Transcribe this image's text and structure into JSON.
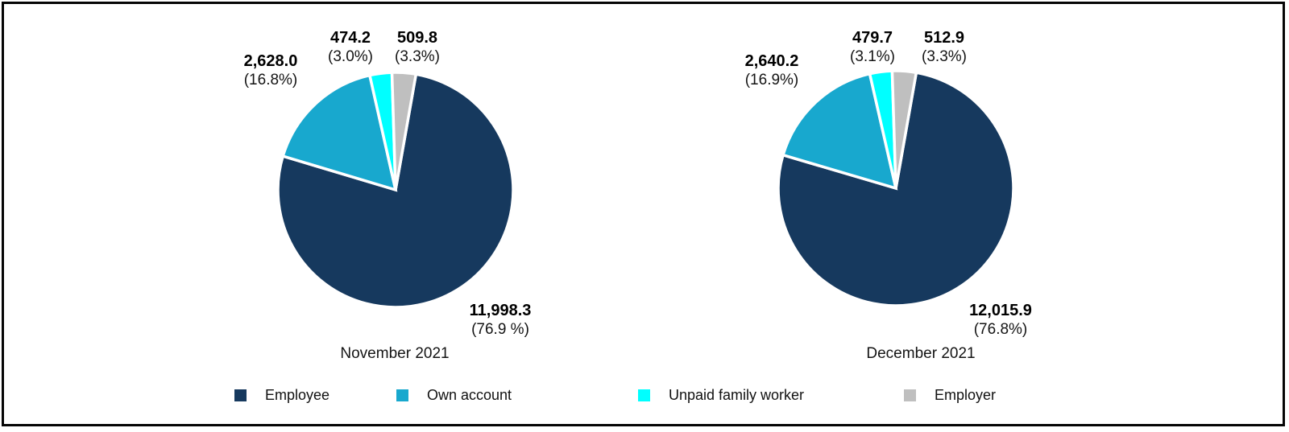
{
  "colors": {
    "employee": "#16395E",
    "own_account": "#18A8CE",
    "unpaid_family_worker": "#00FFFF",
    "employer": "#BFBFBF",
    "frame_border": "#050505",
    "background": "#FFFFFF"
  },
  "chart_data": [
    {
      "type": "pie",
      "title": "November 2021",
      "categories": [
        "Employee",
        "Own account",
        "Unpaid family worker",
        "Employer"
      ],
      "values": [
        11998.3,
        2628.0,
        474.2,
        509.8
      ],
      "colors": [
        "#16395E",
        "#18A8CE",
        "#00FFFF",
        "#BFBFBF"
      ],
      "start_angle_deg": 10,
      "slice_gap": "white borders between slices",
      "slices": [
        {
          "name": "Employee",
          "value": 11998.3,
          "value_label": "11,998.3",
          "pct_label": "(76.9 %)"
        },
        {
          "name": "Own account",
          "value": 2628.0,
          "value_label": "2,628.0",
          "pct_label": "(16.8%)"
        },
        {
          "name": "Unpaid family worker",
          "value": 474.2,
          "value_label": "474.2",
          "pct_label": "(3.0%)"
        },
        {
          "name": "Employer",
          "value": 509.8,
          "value_label": "509.8",
          "pct_label": "(3.3%)"
        }
      ]
    },
    {
      "type": "pie",
      "title": "December 2021",
      "categories": [
        "Employee",
        "Own account",
        "Unpaid family worker",
        "Employer"
      ],
      "values": [
        12015.9,
        2640.2,
        479.7,
        512.9
      ],
      "colors": [
        "#16395E",
        "#18A8CE",
        "#00FFFF",
        "#BFBFBF"
      ],
      "start_angle_deg": 10,
      "slice_gap": "white borders between slices",
      "slices": [
        {
          "name": "Employee",
          "value": 12015.9,
          "value_label": "12,015.9",
          "pct_label": "(76.8%)"
        },
        {
          "name": "Own account",
          "value": 2640.2,
          "value_label": "2,640.2",
          "pct_label": "(16.9%)"
        },
        {
          "name": "Unpaid family worker",
          "value": 479.7,
          "value_label": "479.7",
          "pct_label": "(3.1%)"
        },
        {
          "name": "Employer",
          "value": 512.9,
          "value_label": "512.9",
          "pct_label": "(3.3%)"
        }
      ]
    }
  ],
  "legend": {
    "position": "bottom",
    "items": [
      {
        "label": "Employee",
        "color": "#16395E"
      },
      {
        "label": "Own account",
        "color": "#18A8CE"
      },
      {
        "label": "Unpaid family worker",
        "color": "#00FFFF"
      },
      {
        "label": "Employer",
        "color": "#BFBFBF"
      }
    ]
  }
}
